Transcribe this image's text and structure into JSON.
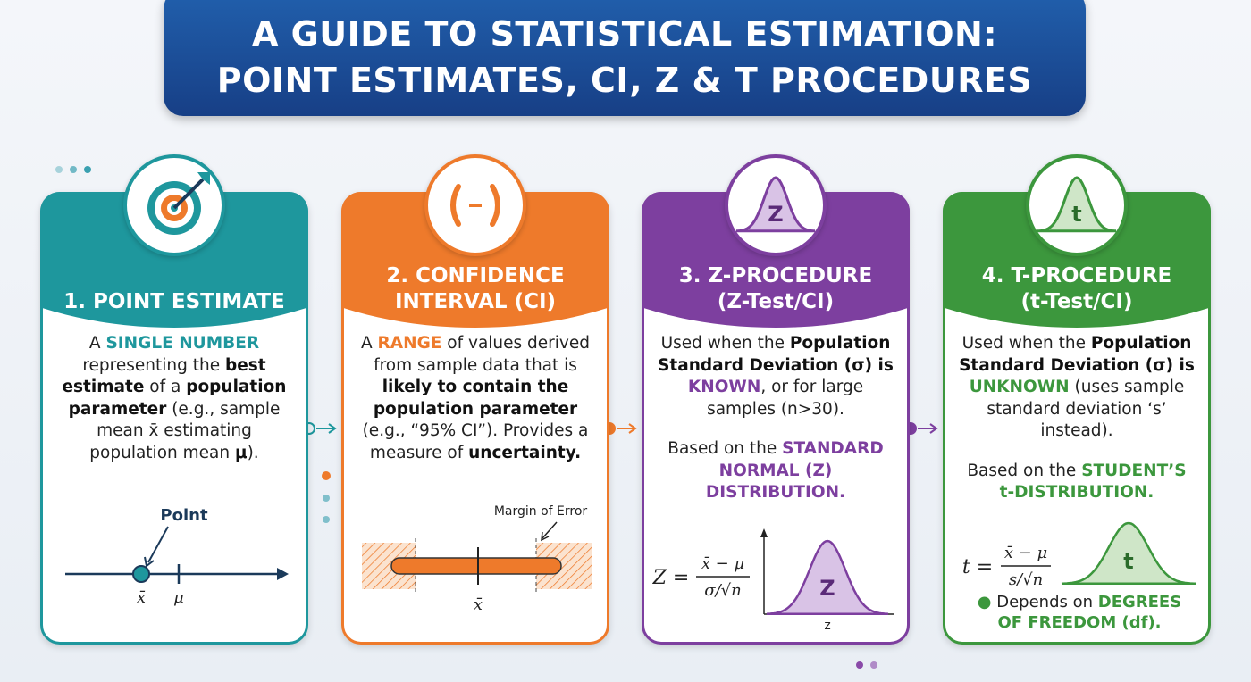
{
  "title": [
    "A GUIDE TO STATISTICAL ESTIMATION:",
    "POINT ESTIMATES, CI, Z & T PROCEDURES"
  ],
  "cards": [
    {
      "color": "#1e979d",
      "header": [
        "1. POINT ESTIMATE"
      ],
      "body": [
        [
          "A ",
          {
            "text": "SINGLE NUMBER",
            "style": "accent"
          },
          " representing the ",
          {
            "text": "best estimate",
            "style": "bold"
          },
          " of a ",
          {
            "text": "population parameter",
            "style": "bold"
          },
          " (e.g., sample mean x̄ estimating population mean ",
          {
            "text": "μ",
            "style": "bold"
          },
          ")."
        ]
      ],
      "figure": {
        "point_label": "Point",
        "xbar": "x̄",
        "mu": "μ"
      }
    },
    {
      "color": "#ee7a2b",
      "header": [
        "2. CONFIDENCE",
        "INTERVAL (CI)"
      ],
      "body": [
        [
          "A ",
          {
            "text": "RANGE",
            "style": "accent"
          },
          " of values derived from sample data that is ",
          {
            "text": "likely to contain the population parameter",
            "style": "bold"
          },
          " (e.g., “95% CI”). Provides a measure of ",
          {
            "text": "uncertainty.",
            "style": "bold"
          }
        ]
      ],
      "figure": {
        "margin_label": "Margin of Error",
        "xbar": "x̄"
      }
    },
    {
      "color": "#7d3f9f",
      "header": [
        "3. Z-PROCEDURE",
        "(Z-Test/CI)"
      ],
      "icon_label": "Z",
      "body": [
        [
          "Used when the ",
          {
            "text": "Population Standard Deviation (σ) is",
            "style": "bold"
          },
          " ",
          {
            "text": "KNOWN",
            "style": "accent"
          },
          ", or for large samples (n>30)."
        ],
        [
          "Based on the ",
          {
            "text": "STANDARD NORMAL (Z) DISTRIBUTION.",
            "style": "accent"
          }
        ]
      ],
      "figure": {
        "lhs": "Z =",
        "numerator": "x̄ − μ",
        "denominator": "σ/√n",
        "curve_label": "Z",
        "axis_label": "z"
      }
    },
    {
      "color": "#3c973d",
      "header": [
        "4. T-PROCEDURE",
        "(t-Test/CI)"
      ],
      "icon_label": "t",
      "body": [
        [
          "Used when the ",
          {
            "text": "Population Standard Deviation (σ) is",
            "style": "bold"
          },
          " ",
          {
            "text": "UNKNOWN",
            "style": "accent"
          },
          " (uses sample standard deviation ‘s’ instead)."
        ],
        [
          "Based on the ",
          {
            "text": "STUDENT’S t-DISTRIBUTION.",
            "style": "accent"
          }
        ]
      ],
      "figure": {
        "lhs": "t =",
        "numerator": "x̄ − μ",
        "denominator": "s/√n",
        "curve_label": "t"
      },
      "note": [
        "Depends on ",
        {
          "text": "DEGREES OF FREEDOM (df).",
          "style": "accent"
        }
      ]
    }
  ]
}
